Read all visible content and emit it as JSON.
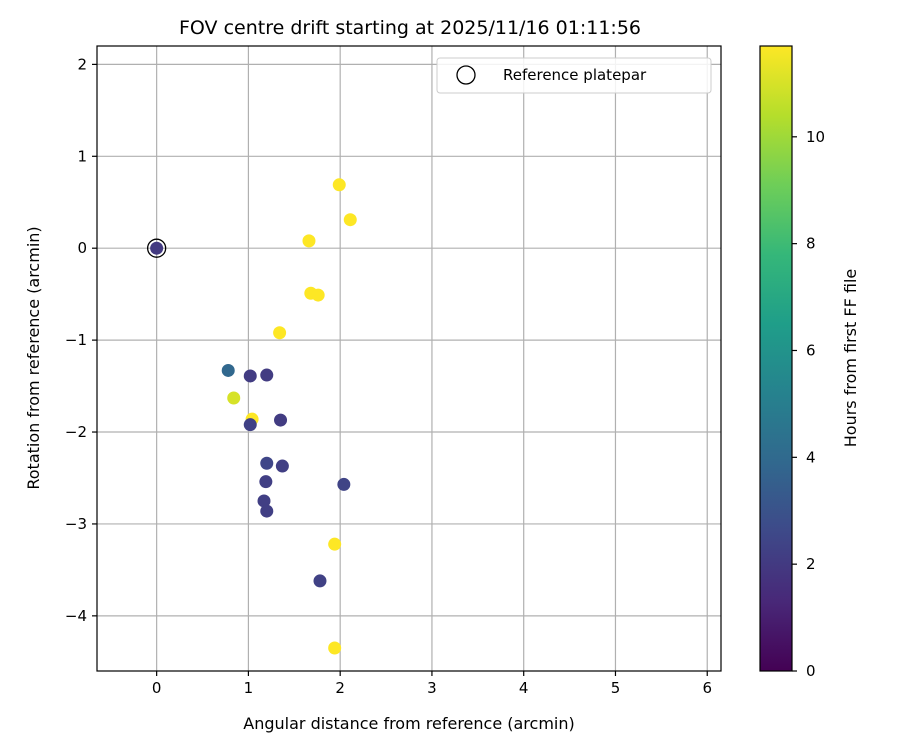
{
  "chart_data": {
    "type": "scatter",
    "title": "FOV centre drift starting at 2025/11/16 01:11:56",
    "xlabel": "Angular distance from reference (arcmin)",
    "ylabel": "Rotation from reference (arcmin)",
    "xlim": [
      -0.65,
      6.15
    ],
    "ylim": [
      -4.6,
      2.2
    ],
    "xticks": [
      0,
      1,
      2,
      3,
      4,
      5,
      6
    ],
    "yticks": [
      2,
      1,
      0,
      -1,
      -2,
      -3,
      -4
    ],
    "xtick_labels": [
      "0",
      "1",
      "2",
      "3",
      "4",
      "5",
      "6"
    ],
    "ytick_labels": [
      "2",
      "1",
      "0",
      "−1",
      "−2",
      "−3",
      "−4"
    ],
    "grid": true,
    "legend": {
      "position": "top-right",
      "label": "Reference platepar"
    },
    "reference_point": {
      "x": 0,
      "y": 0
    },
    "colorbar": {
      "label": "Hours from first FF file",
      "range": [
        0,
        11.7
      ],
      "ticks": [
        0,
        2,
        4,
        6,
        8,
        10
      ],
      "tick_labels": [
        "0",
        "2",
        "4",
        "6",
        "8",
        "10"
      ],
      "colormap": [
        "#440154",
        "#482878",
        "#3e4989",
        "#31688e",
        "#26828e",
        "#1f9e89",
        "#35b779",
        "#6ece58",
        "#b5de2b",
        "#fde725"
      ]
    },
    "points": [
      {
        "x": 0.0,
        "y": 0.0,
        "t": 2.0
      },
      {
        "x": 0.78,
        "y": -1.33,
        "t": 3.9
      },
      {
        "x": 1.02,
        "y": -1.39,
        "t": 2.1
      },
      {
        "x": 1.2,
        "y": -1.38,
        "t": 2.1
      },
      {
        "x": 0.84,
        "y": -1.63,
        "t": 11.0
      },
      {
        "x": 1.04,
        "y": -1.86,
        "t": 11.7
      },
      {
        "x": 1.02,
        "y": -1.92,
        "t": 2.3
      },
      {
        "x": 1.35,
        "y": -1.87,
        "t": 2.1
      },
      {
        "x": 1.2,
        "y": -2.34,
        "t": 2.5
      },
      {
        "x": 1.37,
        "y": -2.37,
        "t": 2.2
      },
      {
        "x": 1.19,
        "y": -2.54,
        "t": 2.2
      },
      {
        "x": 2.04,
        "y": -2.57,
        "t": 2.4
      },
      {
        "x": 1.17,
        "y": -2.75,
        "t": 2.2
      },
      {
        "x": 1.2,
        "y": -2.86,
        "t": 2.2
      },
      {
        "x": 1.78,
        "y": -3.62,
        "t": 2.3
      },
      {
        "x": 1.99,
        "y": 0.69,
        "t": 11.7
      },
      {
        "x": 2.11,
        "y": 0.31,
        "t": 11.7
      },
      {
        "x": 1.66,
        "y": 0.08,
        "t": 11.7
      },
      {
        "x": 1.68,
        "y": -0.49,
        "t": 11.7
      },
      {
        "x": 1.76,
        "y": -0.51,
        "t": 11.7
      },
      {
        "x": 1.34,
        "y": -0.92,
        "t": 11.7
      },
      {
        "x": 1.94,
        "y": -3.22,
        "t": 11.7
      },
      {
        "x": 1.94,
        "y": -4.35,
        "t": 11.7
      }
    ]
  }
}
